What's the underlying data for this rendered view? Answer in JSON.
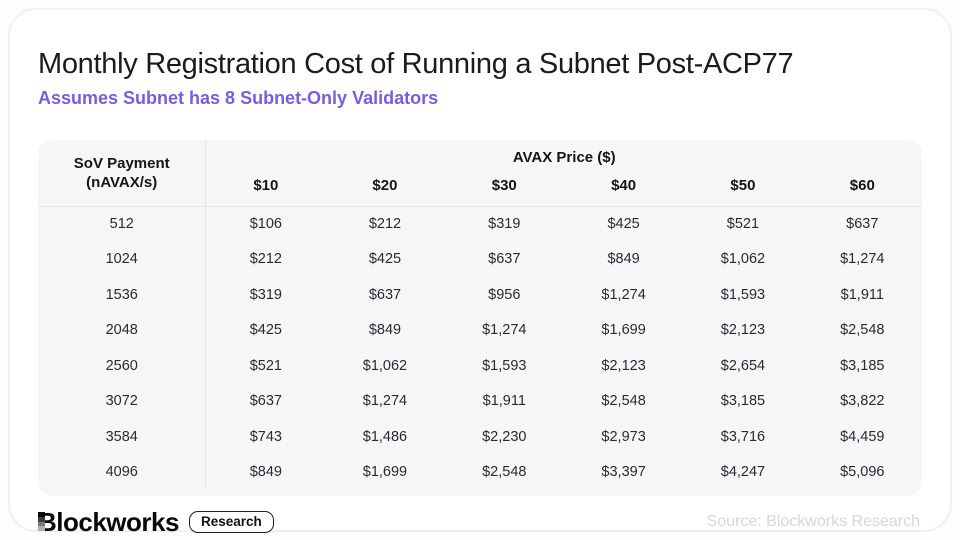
{
  "header": {
    "title": "Monthly Registration Cost of Running a Subnet Post-ACP77",
    "subtitle": "Assumes Subnet has 8 Subnet-Only Validators"
  },
  "table": {
    "corner_line1": "SoV Payment",
    "corner_line2": "(nAVAX/s)",
    "group_header": "AVAX Price ($)",
    "columns": [
      "$10",
      "$20",
      "$30",
      "$40",
      "$50",
      "$60"
    ],
    "rows": [
      {
        "payment": "512",
        "values": [
          "$106",
          "$212",
          "$319",
          "$425",
          "$521",
          "$637"
        ]
      },
      {
        "payment": "1024",
        "values": [
          "$212",
          "$425",
          "$637",
          "$849",
          "$1,062",
          "$1,274"
        ]
      },
      {
        "payment": "1536",
        "values": [
          "$319",
          "$637",
          "$956",
          "$1,274",
          "$1,593",
          "$1,911"
        ]
      },
      {
        "payment": "2048",
        "values": [
          "$425",
          "$849",
          "$1,274",
          "$1,699",
          "$2,123",
          "$2,548"
        ]
      },
      {
        "payment": "2560",
        "values": [
          "$521",
          "$1,062",
          "$1,593",
          "$2,123",
          "$2,654",
          "$3,185"
        ]
      },
      {
        "payment": "3072",
        "values": [
          "$637",
          "$1,274",
          "$1,911",
          "$2,548",
          "$3,185",
          "$3,822"
        ]
      },
      {
        "payment": "3584",
        "values": [
          "$743",
          "$1,486",
          "$2,230",
          "$2,973",
          "$3,716",
          "$4,459"
        ]
      },
      {
        "payment": "4096",
        "values": [
          "$849",
          "$1,699",
          "$2,548",
          "$3,397",
          "$4,247",
          "$5,096"
        ]
      }
    ]
  },
  "footer": {
    "logo_text": "Blockworks",
    "logo_badge": "Research",
    "source": "Source: Blockworks Research"
  },
  "colors": {
    "accent_purple": "#7a5ce0",
    "table_background": "#f6f6f8",
    "divider": "#e4e4e9",
    "title_text": "#1b1b1f",
    "source_text": "#d6d6db"
  },
  "chart_data": {
    "type": "table",
    "title": "Monthly Registration Cost of Running a Subnet Post-ACP77",
    "subtitle": "Assumes Subnet has 8 Subnet-Only Validators",
    "row_header_label": "SoV Payment (nAVAX/s)",
    "column_group_label": "AVAX Price ($)",
    "columns_avax_price_usd": [
      10,
      20,
      30,
      40,
      50,
      60
    ],
    "rows": [
      {
        "sov_payment_navax_s": 512,
        "monthly_cost_usd": [
          106,
          212,
          319,
          425,
          521,
          637
        ]
      },
      {
        "sov_payment_navax_s": 1024,
        "monthly_cost_usd": [
          212,
          425,
          637,
          849,
          1062,
          1274
        ]
      },
      {
        "sov_payment_navax_s": 1536,
        "monthly_cost_usd": [
          319,
          637,
          956,
          1274,
          1593,
          1911
        ]
      },
      {
        "sov_payment_navax_s": 2048,
        "monthly_cost_usd": [
          425,
          849,
          1274,
          1699,
          2123,
          2548
        ]
      },
      {
        "sov_payment_navax_s": 2560,
        "monthly_cost_usd": [
          521,
          1062,
          1593,
          2123,
          2654,
          3185
        ]
      },
      {
        "sov_payment_navax_s": 3072,
        "monthly_cost_usd": [
          637,
          1274,
          1911,
          2548,
          3185,
          3822
        ]
      },
      {
        "sov_payment_navax_s": 3584,
        "monthly_cost_usd": [
          743,
          1486,
          2230,
          2973,
          3716,
          4459
        ]
      },
      {
        "sov_payment_navax_s": 4096,
        "monthly_cost_usd": [
          849,
          1699,
          2548,
          3397,
          4247,
          5096
        ]
      }
    ],
    "source": "Blockworks Research"
  }
}
